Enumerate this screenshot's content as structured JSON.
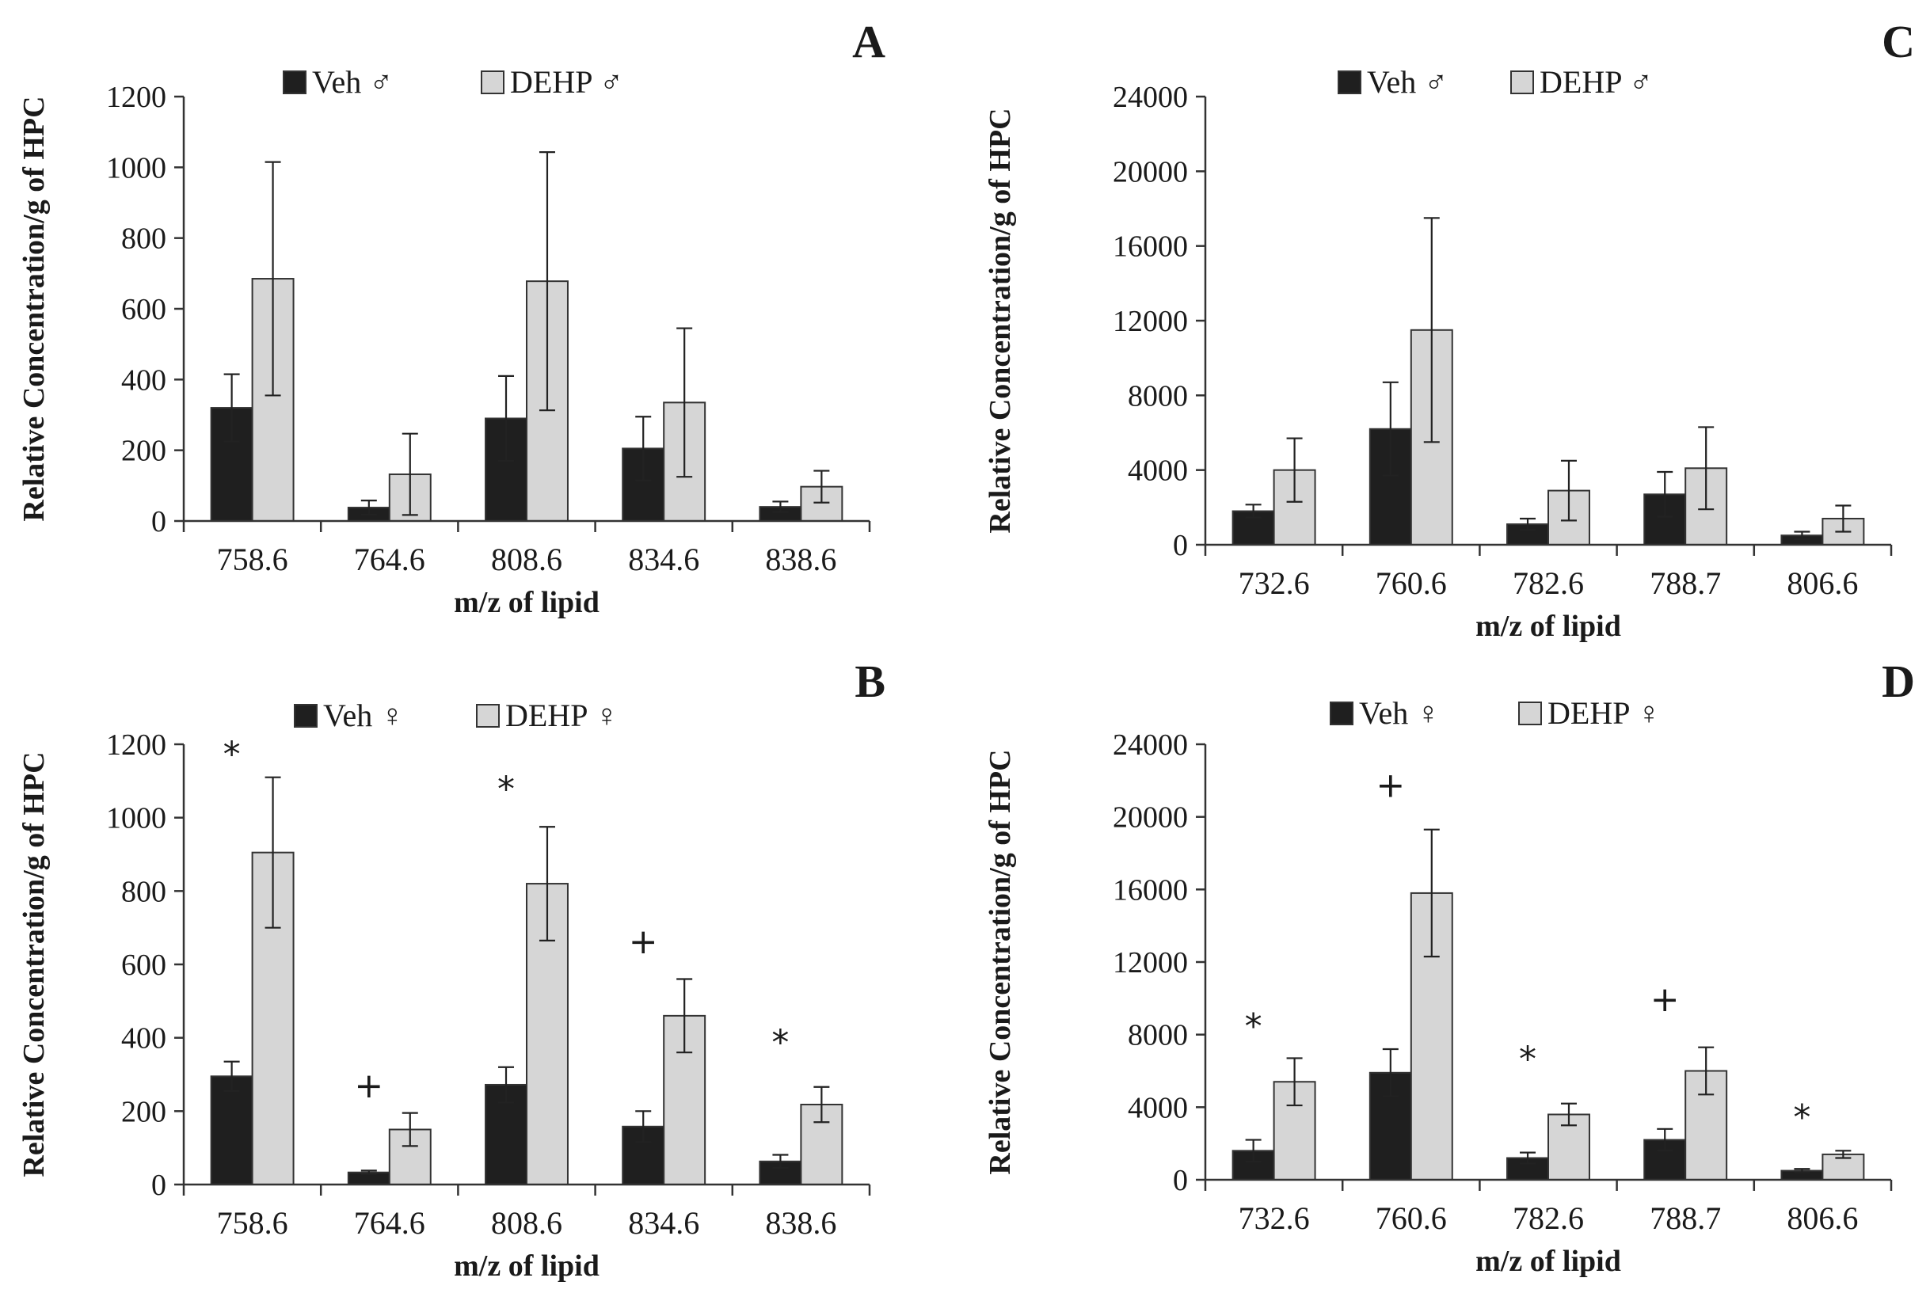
{
  "figure": {
    "background": "#ffffff"
  },
  "colors": {
    "veh": "#1f1f1f",
    "dehp": "#d6d6d6",
    "bar_stroke": "#333333"
  },
  "chart_data": [
    {
      "panel": "A",
      "type": "bar",
      "xlabel": "m/z of lipid",
      "ylabel": "Relative Concentration/g of HPC",
      "ylim": [
        0,
        1200
      ],
      "yticks": [
        "0",
        "200",
        "400",
        "600",
        "800",
        "1000",
        "1200"
      ],
      "categories": [
        "758.6",
        "764.6",
        "808.6",
        "834.6",
        "838.6"
      ],
      "legend": {
        "position": "top-center",
        "entries": [
          "Veh ♂",
          "DEHP ♂"
        ]
      },
      "series": [
        {
          "name": "Veh ♂",
          "values": [
            320,
            38,
            290,
            205,
            40
          ],
          "errors": [
            95,
            20,
            120,
            90,
            15
          ]
        },
        {
          "name": "DEHP ♂",
          "values": [
            685,
            132,
            678,
            335,
            97
          ],
          "errors": [
            330,
            115,
            365,
            210,
            45
          ]
        }
      ],
      "annotations": []
    },
    {
      "panel": "B",
      "type": "bar",
      "xlabel": "m/z of lipid",
      "ylabel": "Relative Concentration/g of HPC",
      "ylim": [
        0,
        1200
      ],
      "yticks": [
        "0",
        "200",
        "400",
        "600",
        "800",
        "1000",
        "1200"
      ],
      "categories": [
        "758.6",
        "764.6",
        "808.6",
        "834.6",
        "838.6"
      ],
      "legend": {
        "position": "top-center",
        "entries": [
          "Veh ♀",
          "DEHP ♀"
        ]
      },
      "series": [
        {
          "name": "Veh ♀",
          "values": [
            295,
            33,
            272,
            158,
            63
          ],
          "errors": [
            40,
            5,
            48,
            42,
            18
          ]
        },
        {
          "name": "DEHP ♀",
          "values": [
            905,
            150,
            820,
            460,
            218
          ],
          "errors": [
            205,
            45,
            155,
            100,
            48
          ]
        }
      ],
      "annotations": [
        {
          "category": "758.6",
          "mark": "*",
          "value": 1175
        },
        {
          "category": "764.6",
          "mark": "+",
          "value": 272
        },
        {
          "category": "808.6",
          "mark": "*",
          "value": 1080
        },
        {
          "category": "834.6",
          "mark": "+",
          "value": 665
        },
        {
          "category": "838.6",
          "mark": "*",
          "value": 390
        }
      ]
    },
    {
      "panel": "C",
      "type": "bar",
      "xlabel": "m/z of lipid",
      "ylabel": "Relative Concentration/g of HPC",
      "ylim": [
        0,
        24000
      ],
      "yticks": [
        "0",
        "4000",
        "8000",
        "12000",
        "16000",
        "20000",
        "24000"
      ],
      "categories": [
        "732.6",
        "760.6",
        "782.6",
        "788.7",
        "806.6"
      ],
      "legend": {
        "position": "top-center",
        "entries": [
          "Veh ♂",
          "DEHP ♂"
        ]
      },
      "series": [
        {
          "name": "Veh ♂",
          "values": [
            1800,
            6200,
            1100,
            2700,
            500
          ],
          "errors": [
            350,
            2500,
            300,
            1200,
            200
          ]
        },
        {
          "name": "DEHP ♂",
          "values": [
            4000,
            11500,
            2900,
            4100,
            1400
          ],
          "errors": [
            1700,
            6000,
            1600,
            2200,
            700
          ]
        }
      ],
      "annotations": []
    },
    {
      "panel": "D",
      "type": "bar",
      "xlabel": "m/z of lipid",
      "ylabel": "Relative Concentration/g of HPC",
      "ylim": [
        0,
        24000
      ],
      "yticks": [
        "0",
        "4000",
        "8000",
        "12000",
        "16000",
        "20000",
        "24000"
      ],
      "categories": [
        "732.6",
        "760.6",
        "782.6",
        "788.7",
        "806.6"
      ],
      "legend": {
        "position": "top-center",
        "entries": [
          "Veh ♀",
          "DEHP ♀"
        ]
      },
      "series": [
        {
          "name": "Veh ♀",
          "values": [
            1600,
            5900,
            1200,
            2200,
            500
          ],
          "errors": [
            600,
            1300,
            300,
            600,
            100
          ]
        },
        {
          "name": "DEHP ♀",
          "values": [
            5400,
            15800,
            3600,
            6000,
            1400
          ],
          "errors": [
            1300,
            3500,
            600,
            1300,
            200
          ]
        }
      ],
      "annotations": [
        {
          "category": "732.6",
          "mark": "*",
          "value": 8500
        },
        {
          "category": "760.6",
          "mark": "+",
          "value": 21800
        },
        {
          "category": "782.6",
          "mark": "*",
          "value": 6700
        },
        {
          "category": "788.7",
          "mark": "+",
          "value": 10000
        },
        {
          "category": "806.6",
          "mark": "*",
          "value": 3500
        }
      ]
    }
  ]
}
